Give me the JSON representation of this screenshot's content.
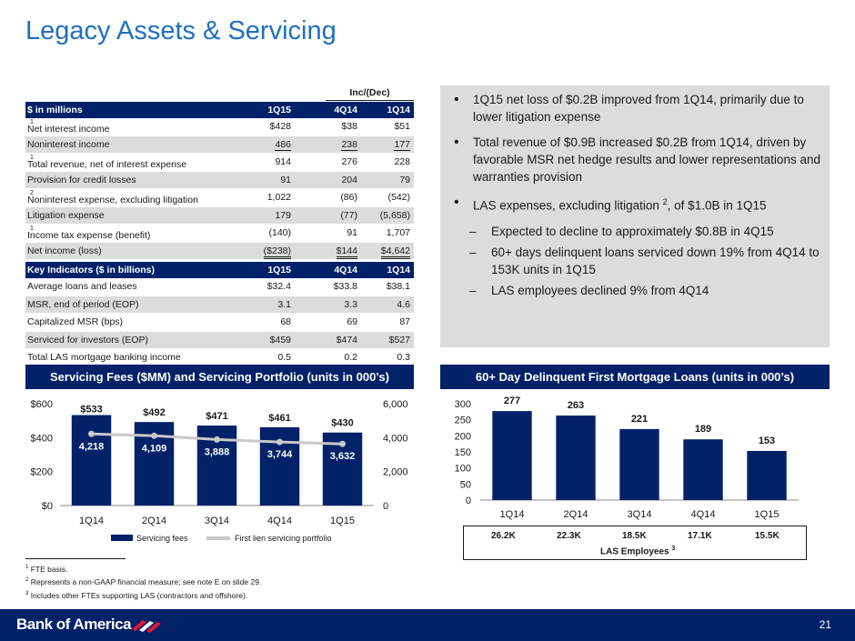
{
  "title": "Legacy Assets & Servicing",
  "fin_table": {
    "group_label": "Inc/(Dec)",
    "header": [
      "$ in millions",
      "1Q15",
      "4Q14",
      "1Q14"
    ],
    "rows": [
      {
        "label": "Net interest income",
        "sup": "1",
        "v": [
          "$428",
          "$38",
          "$51"
        ]
      },
      {
        "label": "Noninterest income",
        "sup": "",
        "v": [
          "486",
          "238",
          "177"
        ]
      },
      {
        "label": "Total revenue, net of interest expense",
        "sup": "1",
        "v": [
          "914",
          "276",
          "228"
        ]
      },
      {
        "label": "Provision for credit losses",
        "sup": "",
        "v": [
          "91",
          "204",
          "79"
        ]
      },
      {
        "label": "Noninterest expense, excluding litigation",
        "sup": "2",
        "v": [
          "1,022",
          "(86)",
          "(542)"
        ]
      },
      {
        "label": "Litigation expense",
        "sup": "",
        "v": [
          "179",
          "(77)",
          "(5,658)"
        ]
      },
      {
        "label": "Income tax expense (benefit)",
        "sup": "1",
        "v": [
          "(140)",
          "91",
          "1,707"
        ]
      },
      {
        "label": "Net income (loss)",
        "sup": "",
        "v": [
          "($238)",
          "$144",
          "$4,642"
        ]
      }
    ]
  },
  "kpi_table": {
    "header": [
      "Key Indicators ($ in billions)",
      "1Q15",
      "4Q14",
      "1Q14"
    ],
    "rows": [
      {
        "label": "Average loans and leases",
        "v": [
          "$32.4",
          "$33.8",
          "$38.1"
        ]
      },
      {
        "label": "MSR, end of period (EOP)",
        "v": [
          "3.1",
          "3.3",
          "4.6"
        ]
      },
      {
        "label": "Capitalized MSR (bps)",
        "v": [
          "68",
          "69",
          "87"
        ]
      },
      {
        "label": "Serviced for investors (EOP)",
        "v": [
          "$459",
          "$474",
          "$527"
        ]
      },
      {
        "label": "Total LAS mortgage banking income",
        "v": [
          "0.5",
          "0.2",
          "0.3"
        ]
      }
    ]
  },
  "bullets": {
    "b1": "1Q15 net loss of $0.2B improved from 1Q14, primarily due to lower litigation expense",
    "b2": "Total revenue of $0.9B increased $0.2B from 1Q14, driven by favorable MSR net hedge results and lower representations and warranties provision",
    "b3_pre": "LAS expenses, excluding litigation",
    "b3_sup": "2",
    "b3_post": ", of $1.0B in 1Q15",
    "s1": "Expected to decline to approximately $0.8B in 4Q15",
    "s2": "60+ days delinquent loans serviced down 19% from 4Q14 to 153K units in 1Q15",
    "s3": "LAS employees declined 9% from 4Q14"
  },
  "left_panel_title": "Servicing Fees ($MM) and Servicing Portfolio (units in 000’s)",
  "right_panel_title": "60+ Day Delinquent First Mortgage Loans (units in 000’s)",
  "chart_data": [
    {
      "type": "bar",
      "title": "Servicing Fees ($MM) and Servicing Portfolio (units in 000’s)",
      "categories": [
        "1Q14",
        "2Q14",
        "3Q14",
        "4Q14",
        "1Q15"
      ],
      "series": [
        {
          "name": "Servicing fees",
          "type": "bar",
          "axis": "left",
          "values": [
            533,
            492,
            471,
            461,
            430
          ],
          "labels": [
            "$533",
            "$492",
            "$471",
            "$461",
            "$430"
          ]
        },
        {
          "name": "First lien servicing portfolio",
          "type": "line",
          "axis": "right",
          "values": [
            4218,
            4109,
            3888,
            3744,
            3632
          ],
          "labels": [
            "4,218",
            "4,109",
            "3,888",
            "3,744",
            "3,632"
          ]
        }
      ],
      "ylim": [
        0,
        600
      ],
      "y2lim": [
        0,
        6000
      ],
      "yticks": [
        "$0",
        "$200",
        "$400",
        "$600"
      ],
      "y2ticks": [
        "0",
        "2,000",
        "4,000",
        "6,000"
      ],
      "legend": "bottom",
      "colors": {
        "bar": "#012169",
        "line": "#c8c8c8"
      }
    },
    {
      "type": "bar",
      "title": "60+ Day Delinquent First Mortgage Loans (units in 000’s)",
      "categories": [
        "1Q14",
        "2Q14",
        "3Q14",
        "4Q14",
        "1Q15"
      ],
      "values": [
        277,
        263,
        221,
        189,
        153
      ],
      "ylim": [
        0,
        300
      ],
      "yticks": [
        "0",
        "50",
        "100",
        "150",
        "200",
        "250",
        "300"
      ],
      "colors": {
        "bar": "#012169"
      }
    }
  ],
  "las_employees": {
    "values": [
      "26.2K",
      "22.3K",
      "18.5K",
      "17.1K",
      "15.5K"
    ],
    "label": "LAS Employees",
    "sup": "3"
  },
  "footnotes": [
    {
      "n": "1",
      "text": "FTE basis."
    },
    {
      "n": "2",
      "text": "Represents a non-GAAP financial measure; see note E on slide 29."
    },
    {
      "n": "3",
      "text": "Includes other FTEs supporting LAS (contractors and offshore)."
    }
  ],
  "brand": "Bank of America",
  "page_number": "21"
}
